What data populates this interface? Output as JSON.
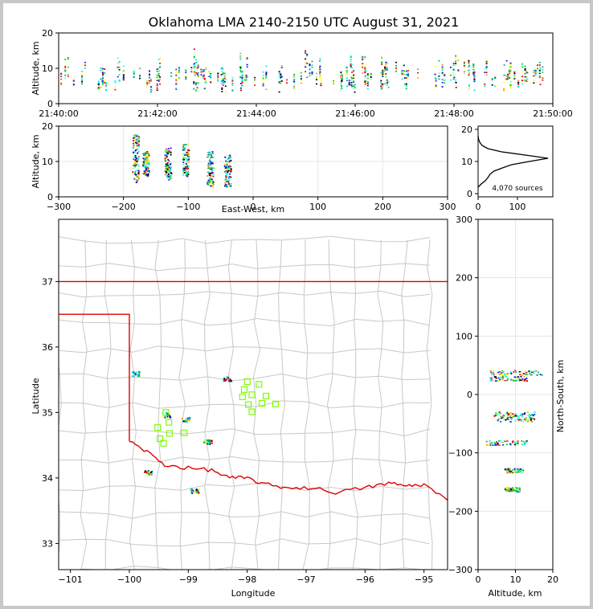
{
  "chart_data": [
    {
      "type": "scatter",
      "panel": "time-altitude",
      "title": "Oklahoma LMA 2140-2150 UTC August 31, 2021",
      "ylabel": "Altitude, km",
      "xlabel": "",
      "x_tick_labels": [
        "21:40:00",
        "21:42:00",
        "21:44:00",
        "21:46:00",
        "21:48:00",
        "21:50:00"
      ],
      "xlim": [
        "21:40:00",
        "21:50:00"
      ],
      "ylim": [
        0,
        20
      ],
      "y_ticks": [
        0,
        10,
        20
      ],
      "altitude_band_km": [
        3,
        15
      ],
      "grid": false
    },
    {
      "type": "scatter",
      "panel": "east-west-altitude",
      "xlabel": "East-West, km",
      "ylabel": "Altitude, km",
      "xlim": [
        -300,
        300
      ],
      "ylim": [
        0,
        20
      ],
      "x_ticks": [
        -300,
        -200,
        -100,
        0,
        100,
        200,
        300
      ],
      "y_ticks": [
        0,
        10,
        20
      ],
      "grid": true,
      "clusters": [
        {
          "x_center": -182,
          "alt_range": [
            4,
            18
          ]
        },
        {
          "x_center": -166,
          "alt_range": [
            6,
            13
          ]
        },
        {
          "x_center": -132,
          "alt_range": [
            5,
            14
          ]
        },
        {
          "x_center": -105,
          "alt_range": [
            6,
            15
          ]
        },
        {
          "x_center": -67,
          "alt_range": [
            3,
            13
          ]
        },
        {
          "x_center": -40,
          "alt_range": [
            3,
            12
          ]
        }
      ]
    },
    {
      "type": "line",
      "panel": "altitude-histogram",
      "annotation": "4,070 sources",
      "x_ticks": [
        0,
        100
      ],
      "y_ticks": [
        0,
        10,
        20
      ],
      "xlim": [
        0,
        190
      ],
      "ylim": [
        -1,
        21
      ],
      "profile": [
        {
          "alt": 2,
          "count": 0
        },
        {
          "alt": 3,
          "count": 8
        },
        {
          "alt": 4,
          "count": 18
        },
        {
          "alt": 5,
          "count": 25
        },
        {
          "alt": 6,
          "count": 30
        },
        {
          "alt": 7,
          "count": 40
        },
        {
          "alt": 8,
          "count": 62
        },
        {
          "alt": 9,
          "count": 85
        },
        {
          "alt": 10,
          "count": 130
        },
        {
          "alt": 11,
          "count": 178
        },
        {
          "alt": 12,
          "count": 120
        },
        {
          "alt": 13,
          "count": 60
        },
        {
          "alt": 14,
          "count": 25
        },
        {
          "alt": 15,
          "count": 10
        },
        {
          "alt": 16,
          "count": 4
        },
        {
          "alt": 17,
          "count": 1
        },
        {
          "alt": 18,
          "count": 0
        }
      ]
    },
    {
      "type": "scatter",
      "panel": "plan-view-map",
      "xlabel": "Longitude",
      "ylabel": "Latitude",
      "xlim": [
        -101.2,
        -94.6
      ],
      "ylim": [
        32.6,
        37.95
      ],
      "x_ticks": [
        -101,
        -100,
        -99,
        -98,
        -97,
        -96,
        -95
      ],
      "y_ticks": [
        33,
        34,
        35,
        36,
        37
      ],
      "source_clusters": [
        {
          "lon": -99.9,
          "lat": 35.6
        },
        {
          "lon": -98.35,
          "lat": 35.52
        },
        {
          "lon": -99.38,
          "lat": 34.97
        },
        {
          "lon": -99.05,
          "lat": 34.9
        },
        {
          "lon": -98.68,
          "lat": 34.56
        },
        {
          "lon": -99.7,
          "lat": 34.1
        },
        {
          "lon": -98.9,
          "lat": 33.81
        }
      ],
      "stations": [
        {
          "lon": -98.0,
          "lat": 35.47
        },
        {
          "lon": -97.8,
          "lat": 35.43
        },
        {
          "lon": -98.05,
          "lat": 35.35
        },
        {
          "lon": -97.92,
          "lat": 35.27
        },
        {
          "lon": -98.08,
          "lat": 35.24
        },
        {
          "lon": -97.68,
          "lat": 35.25
        },
        {
          "lon": -97.98,
          "lat": 35.12
        },
        {
          "lon": -97.75,
          "lat": 35.14
        },
        {
          "lon": -97.52,
          "lat": 35.13
        },
        {
          "lon": -97.92,
          "lat": 35.01
        },
        {
          "lon": -99.38,
          "lat": 35.0
        },
        {
          "lon": -99.33,
          "lat": 34.85
        },
        {
          "lon": -99.52,
          "lat": 34.77
        },
        {
          "lon": -99.32,
          "lat": 34.68
        },
        {
          "lon": -99.07,
          "lat": 34.69
        },
        {
          "lon": -99.48,
          "lat": 34.6
        },
        {
          "lon": -99.42,
          "lat": 34.53
        }
      ]
    },
    {
      "type": "scatter",
      "panel": "altitude-north-south",
      "xlabel": "Altitude, km",
      "ylabel": "North-South, km",
      "xlim": [
        0,
        20
      ],
      "ylim": [
        -300,
        300
      ],
      "x_ticks": [
        0,
        10,
        20
      ],
      "y_ticks": [
        -300,
        -200,
        -100,
        0,
        100,
        200,
        300
      ],
      "grid": true,
      "clusters": [
        {
          "ns": 38,
          "alt_range": [
            3,
            17
          ]
        },
        {
          "ns": 28,
          "alt_range": [
            3,
            13
          ]
        },
        {
          "ns": -33,
          "alt_range": [
            4,
            15
          ]
        },
        {
          "ns": -42,
          "alt_range": [
            5,
            15
          ]
        },
        {
          "ns": -82,
          "alt_range": [
            2,
            13
          ]
        },
        {
          "ns": -130,
          "alt_range": [
            7,
            12
          ]
        },
        {
          "ns": -162,
          "alt_range": [
            7,
            11
          ]
        }
      ]
    }
  ]
}
